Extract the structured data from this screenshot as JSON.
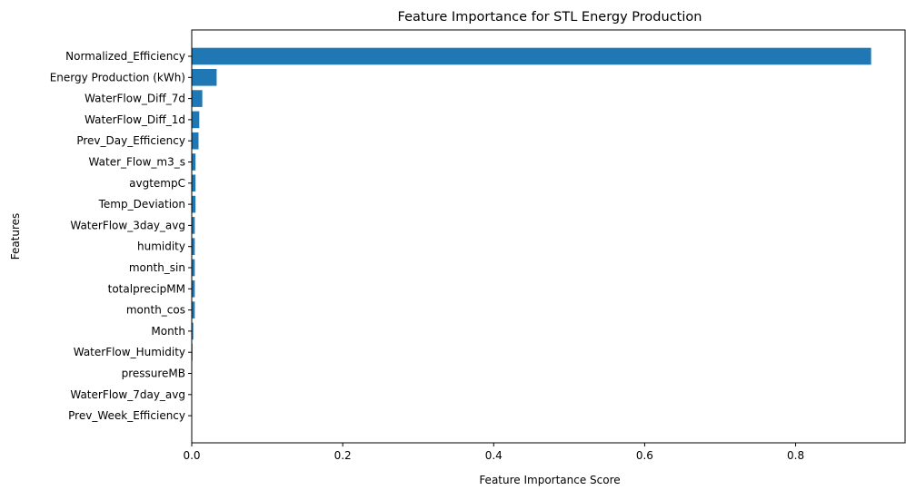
{
  "chart_data": {
    "type": "bar",
    "orientation": "horizontal",
    "title": "Feature Importance for STL Energy Production",
    "xlabel": "Feature Importance Score",
    "ylabel": "Features",
    "xlim": [
      0,
      0.945
    ],
    "xticks": [
      0.0,
      0.2,
      0.4,
      0.6,
      0.8
    ],
    "xtick_labels": [
      "0.0",
      "0.2",
      "0.4",
      "0.6",
      "0.8"
    ],
    "grid": false,
    "legend": "none",
    "bar_color": "#1f77b4",
    "categories": [
      "Normalized_Efficiency",
      "Energy Production (kWh)",
      "WaterFlow_Diff_7d",
      "WaterFlow_Diff_1d",
      "Prev_Day_Efficiency",
      "Water_Flow_m3_s",
      "avgtempC",
      "Temp_Deviation",
      "WaterFlow_3day_avg",
      "humidity",
      "month_sin",
      "totalprecipMM",
      "month_cos",
      "Month",
      "WaterFlow_Humidity",
      "pressureMB",
      "WaterFlow_7day_avg",
      "Prev_Week_Efficiency"
    ],
    "values": [
      0.9,
      0.033,
      0.014,
      0.01,
      0.009,
      0.005,
      0.005,
      0.005,
      0.004,
      0.004,
      0.004,
      0.004,
      0.004,
      0.002,
      0.001,
      0.0005,
      0.0003,
      0.0002
    ]
  }
}
